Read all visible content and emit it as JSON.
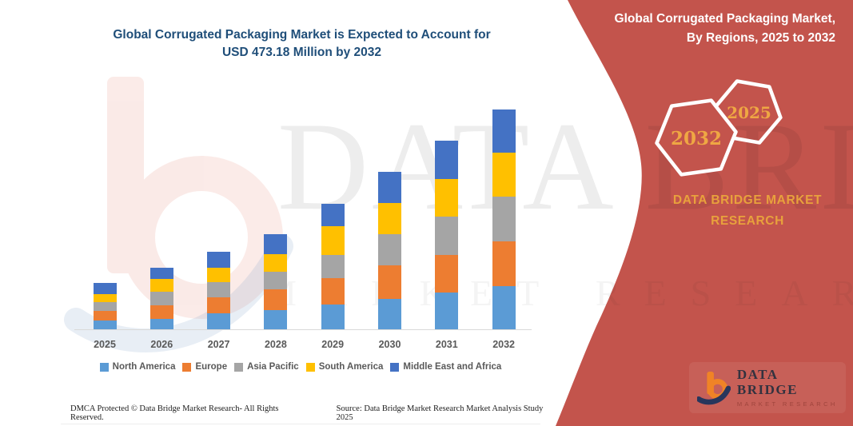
{
  "title": {
    "line1": "Global Corrugated Packaging Market is Expected to Account for",
    "line2": "USD 473.18 Million by 2032"
  },
  "side_panel": {
    "bg_color": "#C3544C",
    "accent_text_color": "#EFA743",
    "heading_line1": "Global Corrugated Packaging Market,",
    "heading_line2": "By Regions, 2025 to 2032",
    "hexagons": [
      {
        "label": "2032"
      },
      {
        "label": "2025"
      }
    ],
    "brand_line1": "DATA BRIDGE MARKET",
    "brand_line2": "RESEARCH",
    "logo": {
      "name": "DATA BRIDGE",
      "subtitle": "MARKET RESEARCH"
    }
  },
  "watermark": {
    "text_main": "DATA BRIDGE",
    "text_sub": "MARKET RESEARCH"
  },
  "footer": {
    "left": "DMCA Protected © Data Bridge Market Research-  All Rights Reserved.",
    "source": "Source: Data Bridge Market Research  Market Analysis Study 2025"
  },
  "chart_data": {
    "type": "bar",
    "stacked": true,
    "title": "Global Corrugated Packaging Market is Expected to Account for USD 473.18 Million by 2032",
    "unit": "USD Million",
    "categories": [
      "2025",
      "2026",
      "2027",
      "2028",
      "2029",
      "2030",
      "2031",
      "2032"
    ],
    "series": [
      {
        "name": "North America",
        "color": "#5B9BD5",
        "values": [
          20.6,
          24.5,
          36.0,
          42.3,
          55.4,
          66.9,
          80.1,
          94.3
        ]
      },
      {
        "name": "Europe",
        "color": "#ED7D31",
        "values": [
          20.6,
          28.6,
          34.3,
          45.6,
          56.1,
          72.0,
          81.8,
          95.5
        ]
      },
      {
        "name": "Asia Pacific",
        "color": "#A5A5A5",
        "values": [
          18.9,
          29.7,
          32.6,
          37.2,
          49.7,
          66.9,
          81.1,
          96.0
        ]
      },
      {
        "name": "South America",
        "color": "#FFC000",
        "values": [
          17.2,
          27.4,
          31.5,
          37.2,
          61.7,
          67.4,
          81.1,
          95.5
        ]
      },
      {
        "name": "Middle East and Africa",
        "color": "#4472C4",
        "values": [
          23.5,
          23.5,
          33.1,
          42.9,
          47.5,
          65.7,
          81.8,
          91.9
        ]
      }
    ],
    "totals_by_year": [
      100.8,
      133.7,
      167.5,
      205.2,
      270.4,
      338.9,
      405.9,
      473.18
    ],
    "highlight_total": {
      "year": "2032",
      "value": 473.18
    },
    "xlabel": "",
    "ylabel": "",
    "y_axis_hidden": true,
    "ylim": [
      0,
      500
    ],
    "grid": false,
    "legend_position": "bottom"
  }
}
